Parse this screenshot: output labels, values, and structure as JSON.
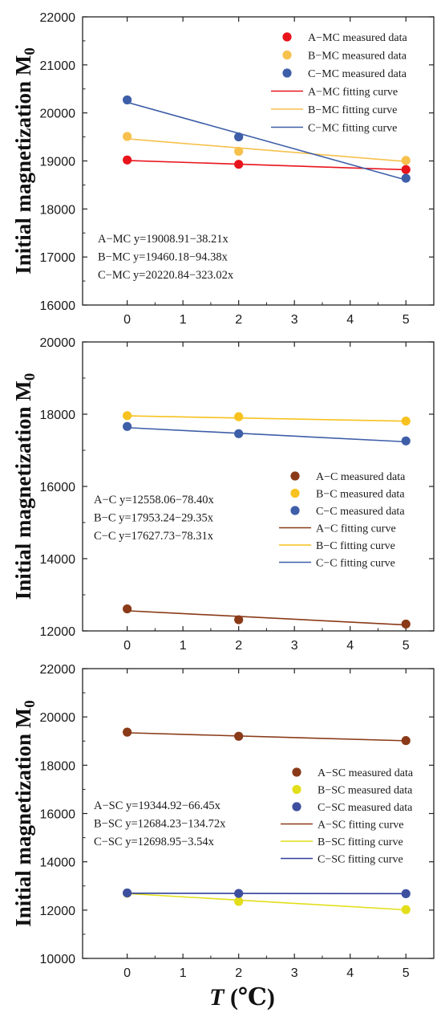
{
  "chart_data": [
    {
      "type": "scatter",
      "xlim": [
        -0.8,
        5.5
      ],
      "ylim": [
        16000,
        22000
      ],
      "xticks": [
        "0",
        "1",
        "2",
        "3",
        "4",
        "5"
      ],
      "yticks": [
        "16000",
        "17000",
        "18000",
        "19000",
        "20000",
        "21000",
        "22000"
      ],
      "ylabel": "Initial magnetization M",
      "ylabel_sub": "0",
      "legend_position": "top-right",
      "series": [
        {
          "name": "A−MC measured data",
          "kind": "points",
          "color": "#e8141c",
          "x": [
            0,
            2,
            5
          ],
          "y": [
            19020,
            18930,
            18820
          ]
        },
        {
          "name": "B−MC measured data",
          "kind": "points",
          "color": "#f6c14d",
          "x": [
            0,
            2,
            5
          ],
          "y": [
            19510,
            19200,
            19010
          ]
        },
        {
          "name": "C−MC measured data",
          "kind": "points",
          "color": "#3e5ea8",
          "x": [
            0,
            2,
            5
          ],
          "y": [
            20270,
            19500,
            18640
          ]
        },
        {
          "name": "A−MC fitting curve",
          "kind": "line",
          "color": "#e8141c",
          "intercept": 19008.91,
          "slope": -38.21
        },
        {
          "name": "B−MC fitting curve",
          "kind": "line",
          "color": "#f6c14d",
          "intercept": 19460.18,
          "slope": -94.38
        },
        {
          "name": "C−MC fitting curve",
          "kind": "line",
          "color": "#3e5ea8",
          "intercept": 20220.84,
          "slope": -323.02
        }
      ],
      "equations": [
        "A−MC y=19008.91−38.21x",
        "B−MC y=19460.18−94.38x",
        "C−MC y=20220.84−323.02x"
      ]
    },
    {
      "type": "scatter",
      "xlim": [
        -0.8,
        5.5
      ],
      "ylim": [
        12000,
        20000
      ],
      "xticks": [
        "0",
        "1",
        "2",
        "3",
        "4",
        "5"
      ],
      "yticks": [
        "12000",
        "14000",
        "16000",
        "18000",
        "20000"
      ],
      "ylabel": "Initial magnetization M",
      "ylabel_sub": "0",
      "legend_position": "right",
      "series": [
        {
          "name": "A−C measured data",
          "kind": "points",
          "color": "#8a3a18",
          "x": [
            0,
            2,
            5
          ],
          "y": [
            12610,
            12310,
            12190
          ]
        },
        {
          "name": "B−C measured data",
          "kind": "points",
          "color": "#f7c21f",
          "x": [
            0,
            2,
            5
          ],
          "y": [
            17960,
            17930,
            17810
          ]
        },
        {
          "name": "C−C measured data",
          "kind": "points",
          "color": "#3e5ea8",
          "x": [
            0,
            2,
            5
          ],
          "y": [
            17660,
            17460,
            17260
          ]
        },
        {
          "name": "A−C fitting curve",
          "kind": "line",
          "color": "#8a3a18",
          "intercept": 12558.06,
          "slope": -78.4
        },
        {
          "name": "B−C fitting curve",
          "kind": "line",
          "color": "#f7c21f",
          "intercept": 17953.24,
          "slope": -29.35
        },
        {
          "name": "C−C fitting curve",
          "kind": "line",
          "color": "#3e5ea8",
          "intercept": 17627.73,
          "slope": -78.31
        }
      ],
      "equations": [
        "A−C y=12558.06−78.40x",
        "B−C y=17953.24−29.35x",
        "C−C y=17627.73−78.31x"
      ]
    },
    {
      "type": "scatter",
      "xlim": [
        -0.8,
        5.5
      ],
      "ylim": [
        10000,
        22000
      ],
      "xticks": [
        "0",
        "1",
        "2",
        "3",
        "4",
        "5"
      ],
      "yticks": [
        "10000",
        "12000",
        "14000",
        "16000",
        "18000",
        "20000",
        "22000"
      ],
      "ylabel": "Initial magnetization M",
      "ylabel_sub": "0",
      "xlabel": "T",
      "xlabel_unit": " (℃)",
      "legend_position": "right",
      "series": [
        {
          "name": "A−SC measured data",
          "kind": "points",
          "color": "#8a3a18",
          "x": [
            0,
            2,
            5
          ],
          "y": [
            19370,
            19200,
            19020
          ]
        },
        {
          "name": "B−SC measured data",
          "kind": "points",
          "color": "#e3de1a",
          "x": [
            0,
            2,
            5
          ],
          "y": [
            12700,
            12360,
            12020
          ]
        },
        {
          "name": "C−SC measured data",
          "kind": "points",
          "color": "#3e4fa0",
          "x": [
            0,
            2,
            5
          ],
          "y": [
            12710,
            12690,
            12680
          ]
        },
        {
          "name": "A−SC fitting curve",
          "kind": "line",
          "color": "#8a3a18",
          "intercept": 19344.92,
          "slope": -66.45
        },
        {
          "name": "B−SC fitting curve",
          "kind": "line",
          "color": "#e3de1a",
          "intercept": 12684.23,
          "slope": -134.72
        },
        {
          "name": "C−SC fitting curve",
          "kind": "line",
          "color": "#2f3f9a",
          "intercept": 12698.95,
          "slope": -3.54
        }
      ],
      "equations": [
        "A−SC y=19344.92−66.45x",
        "B−SC y=12684.23−134.72x",
        "C−SC y=12698.95−3.54x"
      ]
    }
  ]
}
